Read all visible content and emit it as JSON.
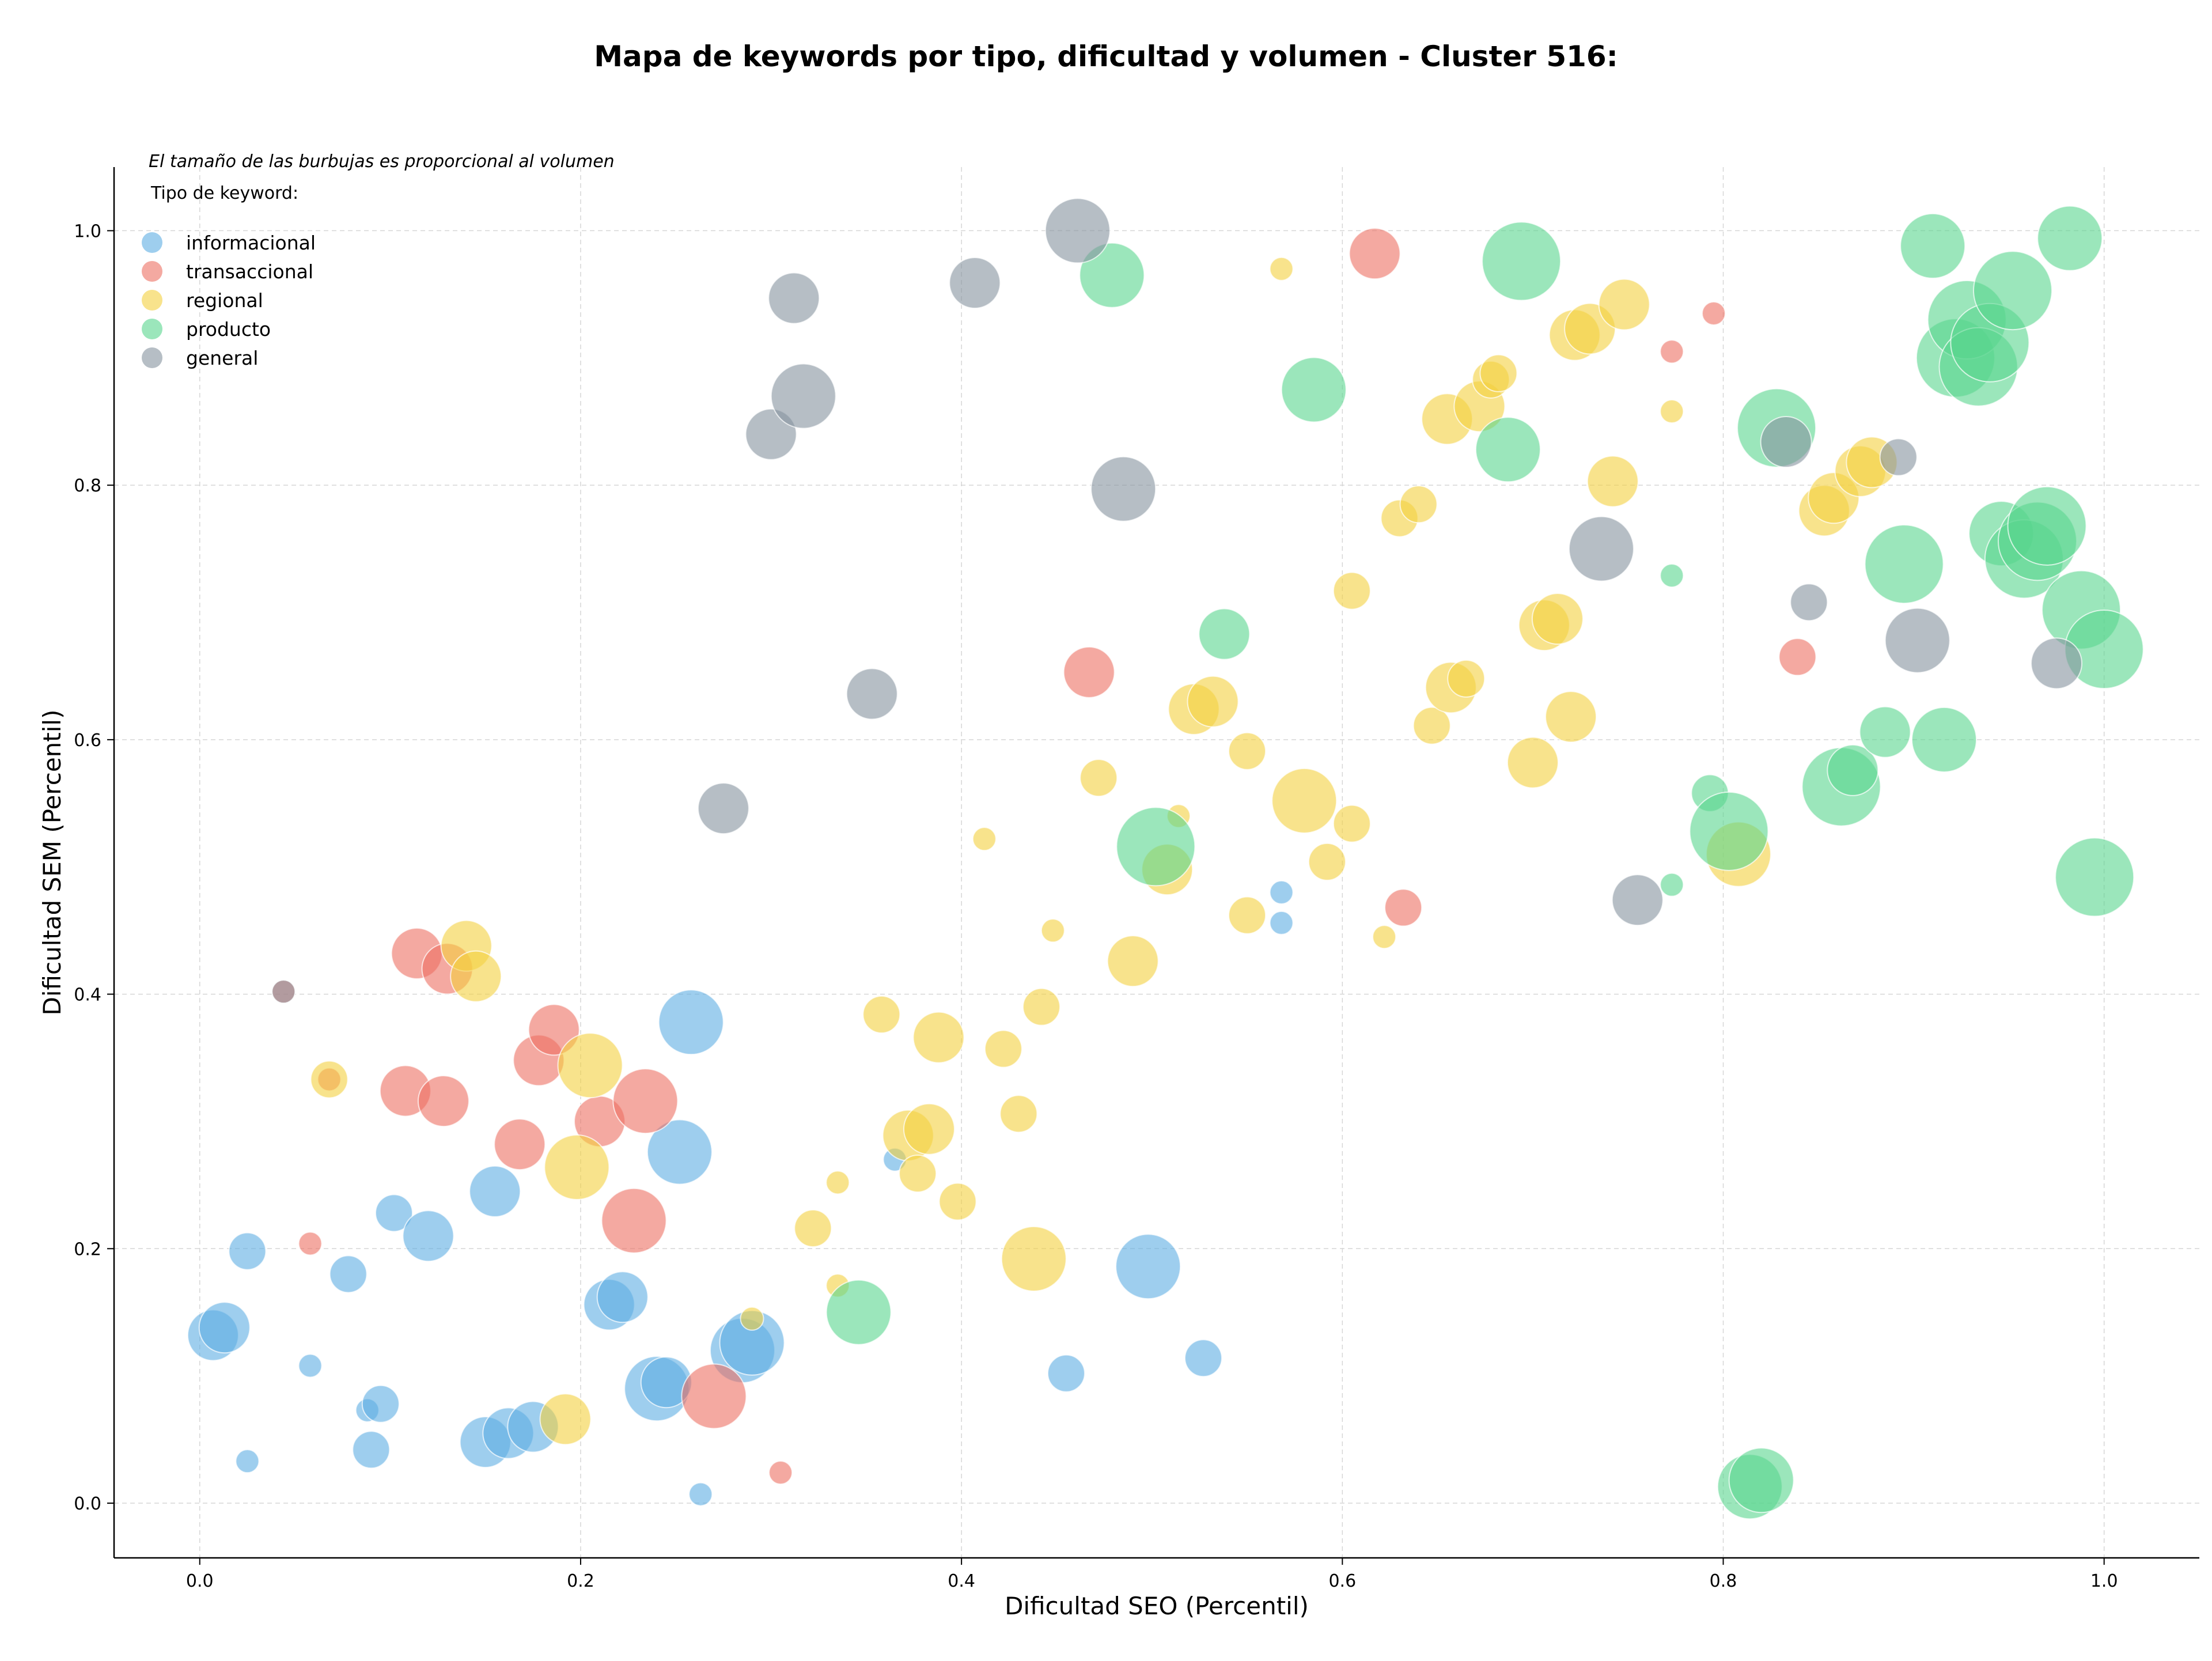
{
  "chart_data": {
    "type": "scatter",
    "title": "Mapa de keywords por tipo, dificultad y volumen - Cluster 516:",
    "xlabel": "Dificultad SEO (Percentil)",
    "ylabel": "Dificultad SEM (Percentil)",
    "xlim": [
      -0.045,
      1.05
    ],
    "ylim": [
      -0.043,
      1.05
    ],
    "x_ticks": [
      "0.0",
      "0.2",
      "0.4",
      "0.6",
      "0.8",
      "1.0"
    ],
    "y_ticks": [
      "0.0",
      "0.2",
      "0.4",
      "0.6",
      "0.8",
      "1.0"
    ],
    "grid": true,
    "note": "El tamaño de las burbujas es proporcional al volumen",
    "legend_title": "Tipo de keyword:",
    "legend_position": "top-left",
    "size_encoding": "volumen (relative)",
    "series": [
      {
        "name": "informacional",
        "color": "#5DADE2",
        "points": [
          [
            0.007,
            0.132,
            3
          ],
          [
            0.013,
            0.138,
            3
          ],
          [
            0.025,
            0.198,
            2
          ],
          [
            0.058,
            0.108,
            1
          ],
          [
            0.078,
            0.18,
            2
          ],
          [
            0.025,
            0.033,
            1
          ],
          [
            0.088,
            0.073,
            1
          ],
          [
            0.095,
            0.078,
            2
          ],
          [
            0.09,
            0.042,
            2
          ],
          [
            0.102,
            0.228,
            2
          ],
          [
            0.12,
            0.21,
            3
          ],
          [
            0.155,
            0.245,
            3
          ],
          [
            0.15,
            0.048,
            3
          ],
          [
            0.162,
            0.055,
            3
          ],
          [
            0.175,
            0.06,
            3
          ],
          [
            0.215,
            0.156,
            3
          ],
          [
            0.222,
            0.162,
            3
          ],
          [
            0.24,
            0.09,
            4
          ],
          [
            0.245,
            0.095,
            3
          ],
          [
            0.252,
            0.276,
            4
          ],
          [
            0.258,
            0.378,
            4
          ],
          [
            0.263,
            0.007,
            1
          ],
          [
            0.285,
            0.12,
            4
          ],
          [
            0.29,
            0.126,
            4
          ],
          [
            0.365,
            0.27,
            1
          ],
          [
            0.455,
            0.102,
            2
          ],
          [
            0.498,
            0.186,
            4
          ],
          [
            0.527,
            0.114,
            2
          ],
          [
            0.568,
            0.48,
            1
          ],
          [
            0.568,
            0.456,
            1
          ]
        ]
      },
      {
        "name": "transaccional",
        "color": "#EC7063",
        "points": [
          [
            0.058,
            0.204,
            1
          ],
          [
            0.114,
            0.432,
            3
          ],
          [
            0.13,
            0.42,
            3
          ],
          [
            0.108,
            0.324,
            3
          ],
          [
            0.128,
            0.316,
            3
          ],
          [
            0.168,
            0.282,
            3
          ],
          [
            0.178,
            0.348,
            3
          ],
          [
            0.186,
            0.372,
            3
          ],
          [
            0.21,
            0.3,
            3
          ],
          [
            0.234,
            0.316,
            4
          ],
          [
            0.228,
            0.222,
            4
          ],
          [
            0.27,
            0.084,
            4
          ],
          [
            0.305,
            0.024,
            1
          ],
          [
            0.467,
            0.653,
            3
          ],
          [
            0.617,
            0.982,
            3
          ],
          [
            0.632,
            0.468,
            2
          ],
          [
            0.773,
            0.905,
            1
          ],
          [
            0.795,
            0.935,
            1
          ],
          [
            0.839,
            0.665,
            2
          ],
          [
            0.044,
            0.402,
            1
          ],
          [
            0.068,
            0.333,
            1
          ]
        ]
      },
      {
        "name": "regional",
        "color": "#F4D03F",
        "points": [
          [
            0.068,
            0.333,
            2
          ],
          [
            0.14,
            0.438,
            3
          ],
          [
            0.145,
            0.414,
            3
          ],
          [
            0.192,
            0.066,
            3
          ],
          [
            0.198,
            0.264,
            4
          ],
          [
            0.205,
            0.344,
            4
          ],
          [
            0.29,
            0.145,
            1
          ],
          [
            0.322,
            0.216,
            2
          ],
          [
            0.335,
            0.252,
            1
          ],
          [
            0.335,
            0.171,
            1
          ],
          [
            0.358,
            0.384,
            2
          ],
          [
            0.372,
            0.289,
            3
          ],
          [
            0.377,
            0.259,
            2
          ],
          [
            0.383,
            0.294,
            3
          ],
          [
            0.388,
            0.366,
            3
          ],
          [
            0.398,
            0.237,
            2
          ],
          [
            0.412,
            0.522,
            1
          ],
          [
            0.422,
            0.357,
            2
          ],
          [
            0.43,
            0.306,
            2
          ],
          [
            0.438,
            0.192,
            4
          ],
          [
            0.442,
            0.39,
            2
          ],
          [
            0.448,
            0.45,
            1
          ],
          [
            0.472,
            0.57,
            2
          ],
          [
            0.49,
            0.426,
            3
          ],
          [
            0.508,
            0.498,
            3
          ],
          [
            0.514,
            0.54,
            1
          ],
          [
            0.522,
            0.624,
            3
          ],
          [
            0.532,
            0.63,
            3
          ],
          [
            0.55,
            0.591,
            2
          ],
          [
            0.55,
            0.462,
            2
          ],
          [
            0.568,
            0.97,
            1
          ],
          [
            0.58,
            0.552,
            4
          ],
          [
            0.592,
            0.504,
            2
          ],
          [
            0.605,
            0.534,
            2
          ],
          [
            0.605,
            0.717,
            2
          ],
          [
            0.622,
            0.445,
            1
          ],
          [
            0.63,
            0.774,
            2
          ],
          [
            0.64,
            0.785,
            2
          ],
          [
            0.647,
            0.611,
            2
          ],
          [
            0.655,
            0.852,
            3
          ],
          [
            0.657,
            0.641,
            3
          ],
          [
            0.665,
            0.648,
            2
          ],
          [
            0.672,
            0.862,
            3
          ],
          [
            0.678,
            0.883,
            2
          ],
          [
            0.682,
            0.888,
            2
          ],
          [
            0.7,
            0.582,
            3
          ],
          [
            0.706,
            0.69,
            3
          ],
          [
            0.713,
            0.695,
            3
          ],
          [
            0.72,
            0.618,
            3
          ],
          [
            0.722,
            0.918,
            3
          ],
          [
            0.73,
            0.923,
            3
          ],
          [
            0.742,
            0.803,
            3
          ],
          [
            0.748,
            0.942,
            3
          ],
          [
            0.773,
            0.858,
            1
          ],
          [
            0.808,
            0.51,
            4
          ],
          [
            0.853,
            0.78,
            3
          ],
          [
            0.858,
            0.79,
            3
          ],
          [
            0.872,
            0.811,
            3
          ],
          [
            0.878,
            0.818,
            3
          ]
        ]
      },
      {
        "name": "producto",
        "color": "#58D68D",
        "points": [
          [
            0.346,
            0.15,
            4
          ],
          [
            0.479,
            0.965,
            4
          ],
          [
            0.502,
            0.516,
            5
          ],
          [
            0.538,
            0.683,
            3
          ],
          [
            0.585,
            0.875,
            4
          ],
          [
            0.687,
            0.828,
            4
          ],
          [
            0.694,
            0.976,
            5
          ],
          [
            0.773,
            0.729,
            1
          ],
          [
            0.773,
            0.486,
            1
          ],
          [
            0.793,
            0.558,
            2
          ],
          [
            0.803,
            0.528,
            5
          ],
          [
            0.814,
            0.013,
            4
          ],
          [
            0.82,
            0.018,
            4
          ],
          [
            0.828,
            0.845,
            5
          ],
          [
            0.862,
            0.563,
            5
          ],
          [
            0.868,
            0.576,
            3
          ],
          [
            0.885,
            0.606,
            3
          ],
          [
            0.895,
            0.738,
            5
          ],
          [
            0.91,
            0.988,
            4
          ],
          [
            0.916,
            0.6,
            4
          ],
          [
            0.922,
            0.9,
            5
          ],
          [
            0.928,
            0.93,
            5
          ],
          [
            0.934,
            0.893,
            5
          ],
          [
            0.94,
            0.912,
            5
          ],
          [
            0.946,
            0.762,
            4
          ],
          [
            0.952,
            0.953,
            5
          ],
          [
            0.958,
            0.742,
            5
          ],
          [
            0.965,
            0.756,
            5
          ],
          [
            0.97,
            0.768,
            5
          ],
          [
            0.982,
            0.994,
            4
          ],
          [
            0.988,
            0.702,
            5
          ],
          [
            0.995,
            0.492,
            5
          ],
          [
            1.0,
            0.671,
            5
          ]
        ]
      },
      {
        "name": "general",
        "color": "#85929E",
        "points": [
          [
            0.044,
            0.402,
            1
          ],
          [
            0.275,
            0.546,
            3
          ],
          [
            0.3,
            0.84,
            3
          ],
          [
            0.312,
            0.947,
            3
          ],
          [
            0.317,
            0.87,
            4
          ],
          [
            0.353,
            0.636,
            3
          ],
          [
            0.407,
            0.959,
            3
          ],
          [
            0.461,
            1.0,
            4
          ],
          [
            0.485,
            0.797,
            4
          ],
          [
            0.736,
            0.75,
            4
          ],
          [
            0.755,
            0.474,
            3
          ],
          [
            0.833,
            0.834,
            3
          ],
          [
            0.845,
            0.708,
            2
          ],
          [
            0.892,
            0.822,
            2
          ],
          [
            0.902,
            0.678,
            4
          ],
          [
            0.975,
            0.66,
            3
          ]
        ]
      }
    ]
  }
}
